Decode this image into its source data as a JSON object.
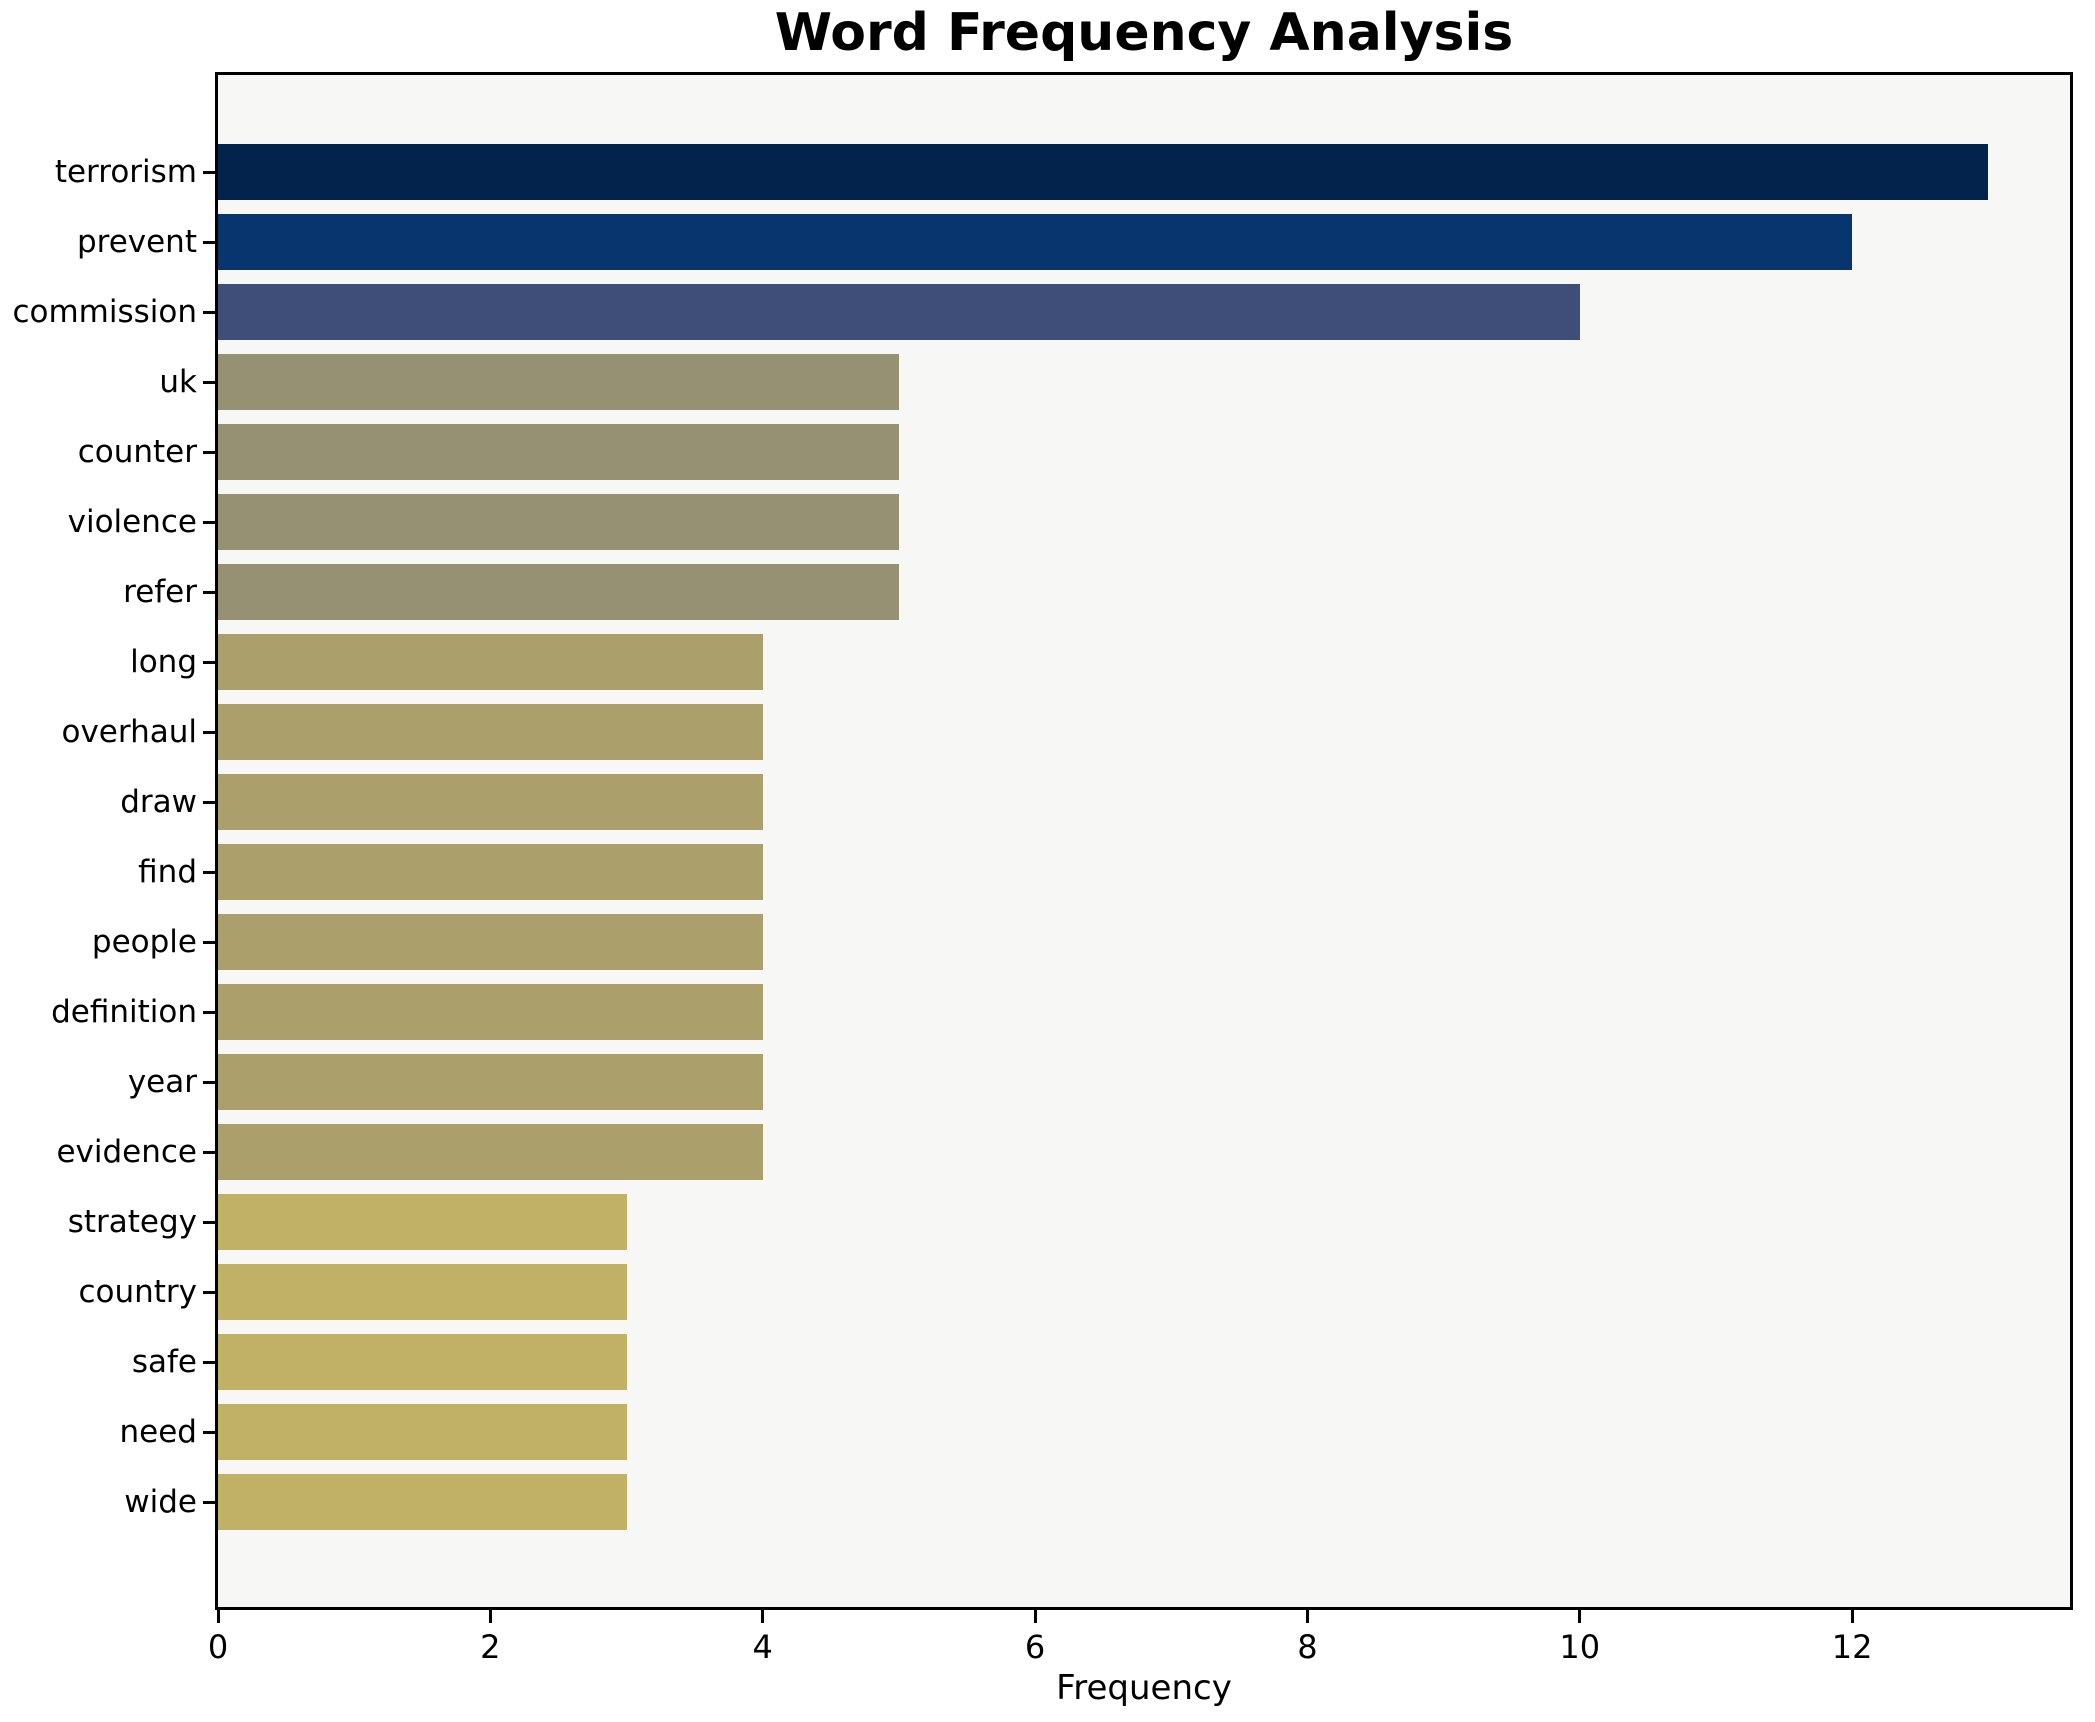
{
  "chart_data": {
    "type": "bar",
    "orientation": "horizontal",
    "title": "Word Frequency Analysis",
    "xlabel": "Frequency",
    "ylabel": "",
    "categories": [
      "terrorism",
      "prevent",
      "commission",
      "uk",
      "counter",
      "violence",
      "refer",
      "long",
      "overhaul",
      "draw",
      "find",
      "people",
      "definition",
      "year",
      "evidence",
      "strategy",
      "country",
      "safe",
      "need",
      "wide"
    ],
    "values": [
      13,
      12,
      10,
      5,
      5,
      5,
      5,
      4,
      4,
      4,
      4,
      4,
      4,
      4,
      4,
      3,
      3,
      3,
      3,
      3
    ],
    "bar_colors": [
      "#03234d",
      "#09356f",
      "#3f4e78",
      "#969173",
      "#969173",
      "#969173",
      "#969173",
      "#aba06c",
      "#aba06c",
      "#aba06c",
      "#aba06c",
      "#aba06c",
      "#aba06c",
      "#aba06c",
      "#aba06c",
      "#c0b166",
      "#c0b166",
      "#c0b166",
      "#c0b166",
      "#c0b166"
    ],
    "xlim": [
      0,
      13.6
    ],
    "xticks": [
      0,
      2,
      4,
      6,
      8,
      10,
      12
    ],
    "grid": false,
    "legend": null,
    "plot_bg": "#f7f7f6",
    "fig_bg": "#ffffff",
    "spine_color": "#000000",
    "text_color": "#000000"
  }
}
